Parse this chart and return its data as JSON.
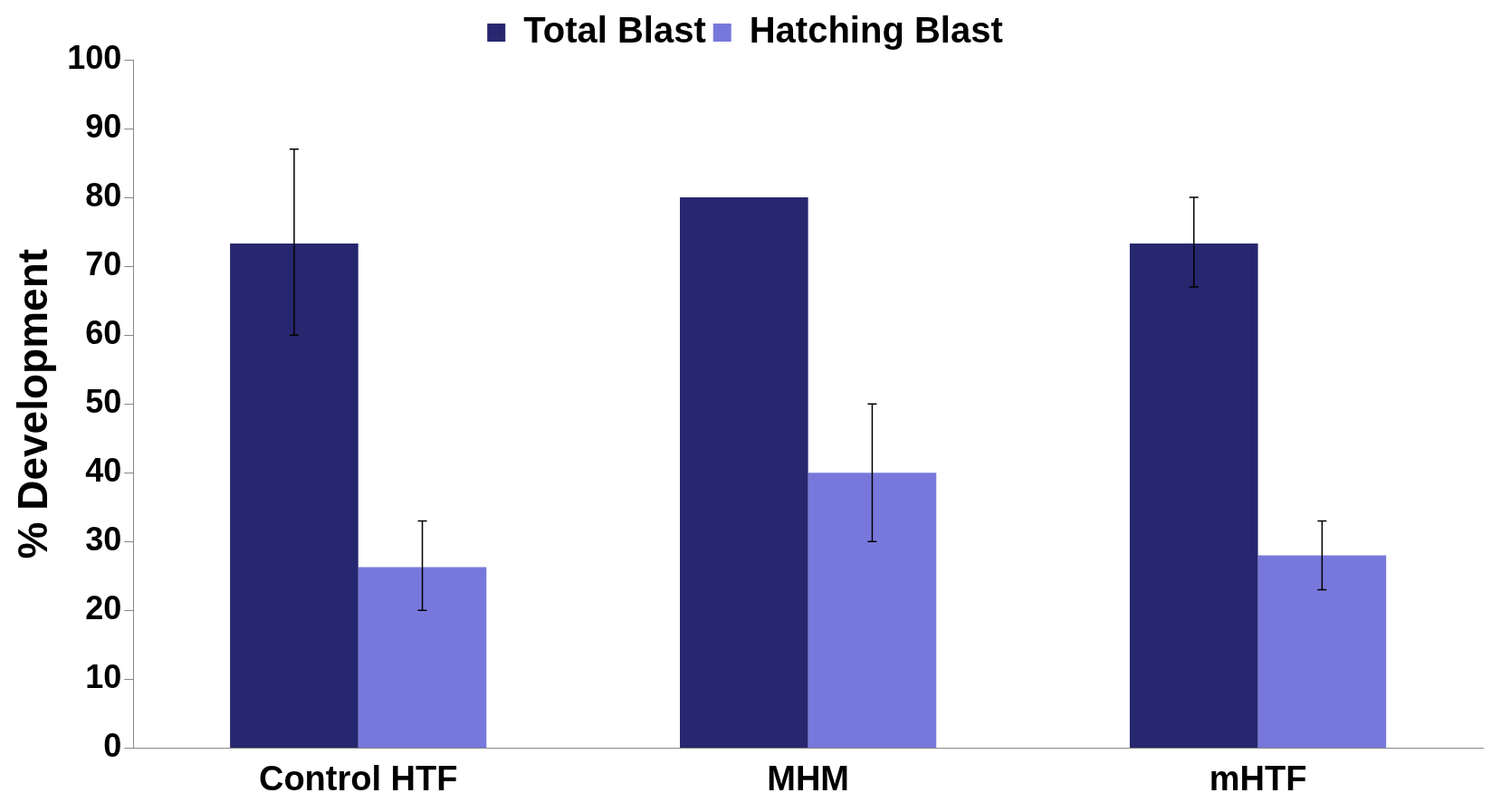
{
  "chart_data": {
    "type": "bar",
    "ylabel": "% Development",
    "categories": [
      "Control HTF",
      "MHM",
      "mHTF"
    ],
    "series": [
      {
        "name": "Total Blast",
        "color": "#27276f",
        "values": [
          73.3,
          80,
          73.3
        ],
        "errors": [
          [
            60,
            87
          ],
          null,
          [
            67,
            80
          ]
        ]
      },
      {
        "name": "Hatching Blast",
        "color": "#7878dc",
        "values": [
          26.3,
          40,
          28
        ],
        "errors": [
          [
            20,
            33
          ],
          [
            30,
            50
          ],
          [
            23,
            33
          ]
        ]
      }
    ],
    "ylim": [
      0,
      100
    ],
    "yticks": [
      0,
      10,
      20,
      30,
      40,
      50,
      60,
      70,
      80,
      90,
      100
    ],
    "grid": false,
    "legend": "top"
  }
}
